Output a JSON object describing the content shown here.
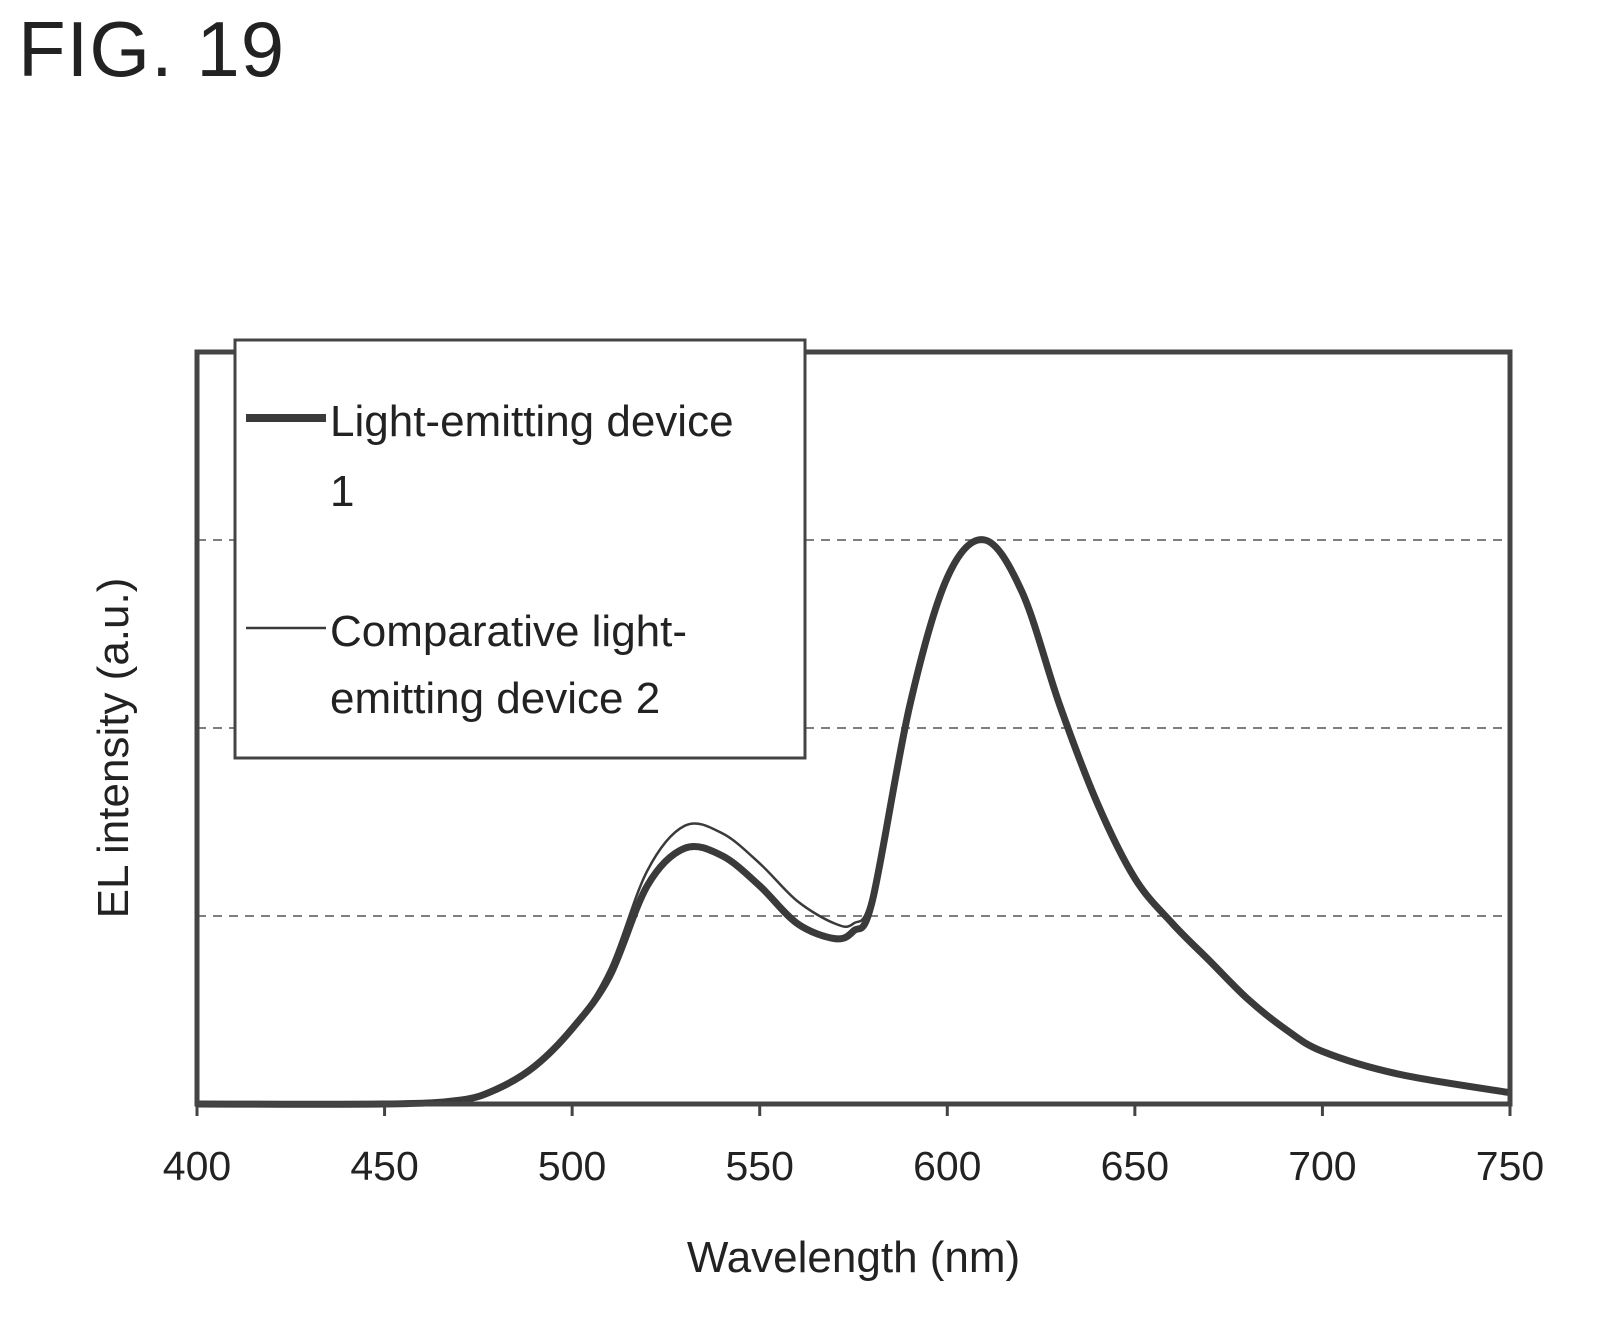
{
  "figure_label": "FIG. 19",
  "chart_data": {
    "type": "line",
    "title": "",
    "xlabel": "Wavelength (nm)",
    "ylabel": "EL intensity (a.u.)",
    "xlim": [
      400,
      750
    ],
    "ylim": [
      0,
      1.0
    ],
    "x_ticks": [
      400,
      450,
      500,
      550,
      600,
      650,
      700,
      750
    ],
    "y_gridlines": [
      0.25,
      0.5,
      0.75,
      1.0
    ],
    "grid": "horizontal-dashed",
    "legend_position": "top-left",
    "legend": {
      "series1_line1": "Light-emitting device",
      "series1_line2": "1",
      "series2_line1": "Comparative light-",
      "series2_line2": "emitting device 2"
    },
    "x": [
      400,
      450,
      470,
      480,
      490,
      500,
      510,
      520,
      530,
      540,
      550,
      560,
      570,
      575,
      580,
      590,
      600,
      610,
      620,
      630,
      640,
      650,
      660,
      670,
      680,
      690,
      700,
      720,
      750
    ],
    "series": [
      {
        "name": "Light-emitting device 1",
        "stroke": "thick",
        "values": [
          0,
          0,
          0.005,
          0.02,
          0.05,
          0.1,
          0.17,
          0.29,
          0.34,
          0.33,
          0.29,
          0.24,
          0.22,
          0.23,
          0.27,
          0.53,
          0.7,
          0.75,
          0.68,
          0.53,
          0.4,
          0.3,
          0.24,
          0.19,
          0.14,
          0.1,
          0.07,
          0.04,
          0.015
        ]
      },
      {
        "name": "Comparative light-emitting device 2",
        "stroke": "thin",
        "values": [
          0,
          0,
          0.005,
          0.02,
          0.05,
          0.1,
          0.18,
          0.31,
          0.37,
          0.36,
          0.32,
          0.27,
          0.24,
          0.24,
          0.28,
          0.53,
          0.7,
          0.75,
          0.68,
          0.53,
          0.4,
          0.3,
          0.24,
          0.19,
          0.14,
          0.1,
          0.07,
          0.04,
          0.015
        ]
      }
    ]
  }
}
